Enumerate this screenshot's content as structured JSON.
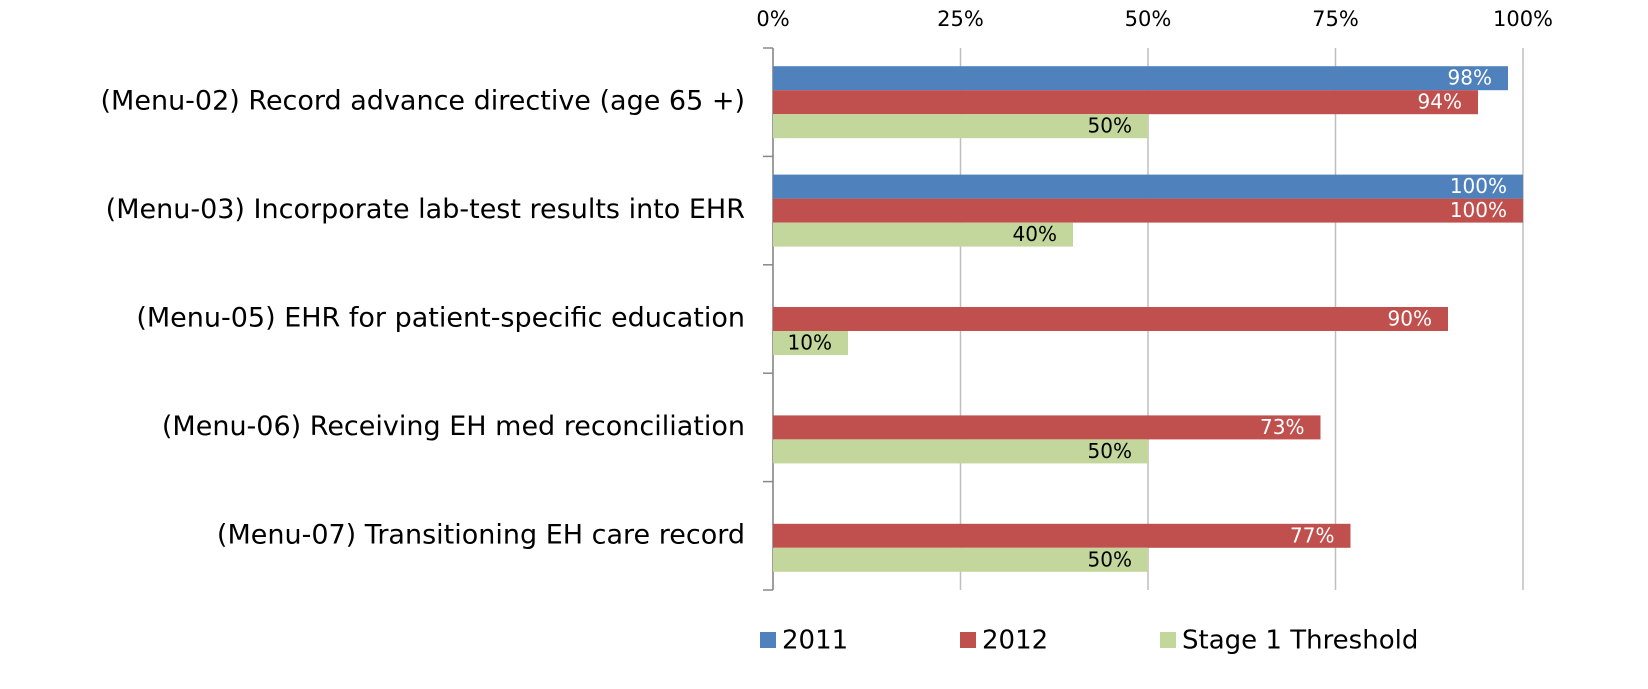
{
  "chart_data": {
    "type": "hbar",
    "categories": [
      "(Menu-02) Record advance directive (age 65 +)",
      "(Menu-03) Incorporate lab-test results into EHR",
      "(Menu-05) EHR for patient-specific education",
      "(Menu-06) Receiving EH med reconciliation",
      "(Menu-07) Transitioning EH care record"
    ],
    "series": [
      {
        "name": "2011",
        "color": "#4f81bd",
        "values": [
          98,
          100,
          null,
          null,
          null
        ],
        "value_labels": [
          "98%",
          "100%",
          null,
          null,
          null
        ]
      },
      {
        "name": "2012",
        "color": "#c0504d",
        "values": [
          94,
          100,
          90,
          73,
          77
        ],
        "value_labels": [
          "94%",
          "100%",
          "90%",
          "73%",
          "77%"
        ]
      },
      {
        "name": "Stage 1 Threshold",
        "color": "#c3d69b",
        "values": [
          50,
          40,
          10,
          50,
          50
        ],
        "value_labels": [
          "50%",
          "40%",
          "10%",
          "50%",
          "50%"
        ]
      }
    ],
    "xlim": [
      0,
      100
    ],
    "xticks": [
      {
        "value": 0,
        "label": "0%"
      },
      {
        "value": 25,
        "label": "25%"
      },
      {
        "value": 50,
        "label": "50%"
      },
      {
        "value": 75,
        "label": "75%"
      },
      {
        "value": 100,
        "label": "100%"
      }
    ],
    "grid": true,
    "legend": "bottom"
  }
}
